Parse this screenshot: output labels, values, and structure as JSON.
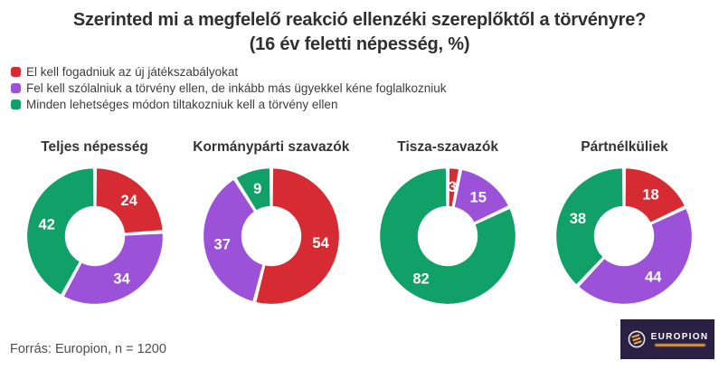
{
  "title": {
    "line1": "Szerinted mi a megfelelő reakció ellenzéki szereplőktől a törvényre?",
    "line2": "(16 év feletti népesség, %)"
  },
  "colors": {
    "red": "#d62b33",
    "purple": "#9b51d8",
    "green": "#10a068",
    "logo_bg": "#2a2044",
    "logo_accent": "#eda73f"
  },
  "legend": {
    "items": [
      {
        "label": "El kell fogadniuk az új játékszabályokat",
        "color": "#d62b33"
      },
      {
        "label": "Fel kell szólalniuk a törvény ellen, de inkább más ügyekkel kéne foglalkozniuk",
        "color": "#9b51d8"
      },
      {
        "label": "Minden lehetséges módon tiltakozniuk kell a törvény ellen",
        "color": "#10a068"
      }
    ]
  },
  "chart_data": {
    "type": "pie",
    "variant": "donut",
    "start_angle": "top",
    "direction": "clockwise",
    "hole_ratio": 0.42,
    "value_labels": "inside slices, white bold",
    "unit": "%",
    "categories": [
      "El kell fogadniuk az új játékszabályokat",
      "Fel kell szólalniuk a törvény ellen, de inkább más ügyekkel kéne foglalkozniuk",
      "Minden lehetséges módon tiltakozniuk kell a törvény ellen"
    ],
    "series_colors": [
      "#d62b33",
      "#9b51d8",
      "#10a068"
    ],
    "charts": [
      {
        "title": "Teljes népesség",
        "values": [
          24,
          34,
          42
        ]
      },
      {
        "title": "Kormánypárti szavazók",
        "values": [
          54,
          37,
          9
        ]
      },
      {
        "title": "Tisza-szavazók",
        "values": [
          3,
          15,
          82
        ]
      },
      {
        "title": "Pártnélküliek",
        "values": [
          18,
          44,
          38
        ]
      }
    ]
  },
  "footer": {
    "source": "Forrás: Europion, n = 1200"
  },
  "logo": {
    "text": "EUROPION"
  }
}
